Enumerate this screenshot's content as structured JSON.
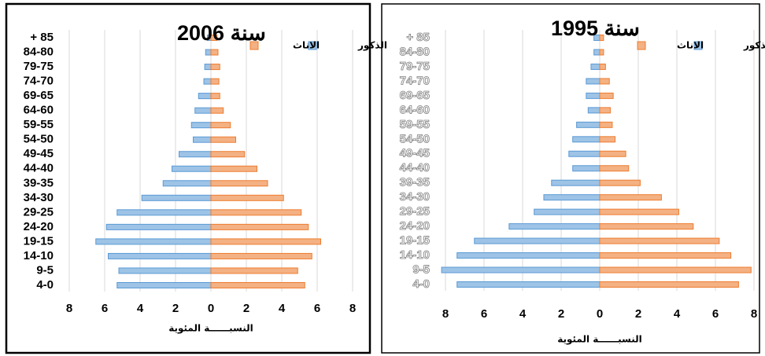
{
  "chart_data": [
    {
      "type": "pyramid",
      "title": "سنة 2006",
      "x_label": "النسبــــــة المئوية",
      "categories": [
        "+ 85",
        "84-80",
        "79-75",
        "74-70",
        "69-65",
        "64-60",
        "59-55",
        "54-50",
        "49-45",
        "44-40",
        "39-35",
        "34-30",
        "29-25",
        "24-20",
        "19-15",
        "14-10",
        "9-5",
        "4-0"
      ],
      "series": [
        {
          "name": "الذكور",
          "color": "#9dc3e6",
          "values": [
            -0.2,
            -0.3,
            -0.35,
            -0.4,
            -0.7,
            -0.9,
            -1.1,
            -1.0,
            -1.8,
            -2.2,
            -2.7,
            -3.9,
            -5.3,
            -5.9,
            -6.5,
            -5.8,
            -5.2,
            -5.3
          ]
        },
        {
          "name": "الاناث",
          "color": "#f4b183",
          "values": [
            0.35,
            0.4,
            0.5,
            0.45,
            0.5,
            0.7,
            1.1,
            1.4,
            1.9,
            2.6,
            3.2,
            4.1,
            5.1,
            5.5,
            6.2,
            5.7,
            4.9,
            5.3
          ]
        }
      ],
      "xlim": [
        -8,
        8
      ],
      "xticks": [
        {
          "value": -8,
          "label": "8"
        },
        {
          "value": -6,
          "label": "6"
        },
        {
          "value": -4,
          "label": "4"
        },
        {
          "value": -2,
          "label": "2"
        },
        0,
        2,
        4,
        6,
        8
      ],
      "grid": true
    },
    {
      "type": "pyramid",
      "title": "سنة 1995",
      "x_label": "النسبــــــة المئوية",
      "categories": [
        "+ 85",
        "84-80",
        "79-75",
        "74-70",
        "69-65",
        "64-60",
        "59-55",
        "54-50",
        "49-45",
        "44-40",
        "39-35",
        "34-30",
        "29-25",
        "24-20",
        "19-15",
        "14-10",
        "9-5",
        "4-0"
      ],
      "series": [
        {
          "name": "الذكور",
          "color": "#9dc3e6",
          "values": [
            -0.3,
            -0.3,
            -0.45,
            -0.7,
            -0.7,
            -0.6,
            -1.2,
            -1.4,
            -1.6,
            -1.4,
            -2.5,
            -2.9,
            -3.4,
            -4.7,
            -6.5,
            -7.4,
            -8.2,
            -7.4
          ]
        },
        {
          "name": "الاناث",
          "color": "#f4b183",
          "values": [
            0.2,
            0.2,
            0.3,
            0.5,
            0.7,
            0.55,
            0.65,
            0.8,
            1.35,
            1.5,
            2.1,
            3.2,
            4.1,
            4.85,
            6.2,
            6.8,
            7.85,
            7.2
          ]
        }
      ],
      "xlim": [
        -8,
        8
      ],
      "xticks": [
        {
          "value": -8,
          "label": "8"
        },
        {
          "value": -6,
          "label": "6"
        },
        {
          "value": -4,
          "label": "4"
        },
        {
          "value": -2,
          "label": "2"
        },
        0,
        2,
        4,
        6,
        8
      ],
      "grid": true
    }
  ]
}
